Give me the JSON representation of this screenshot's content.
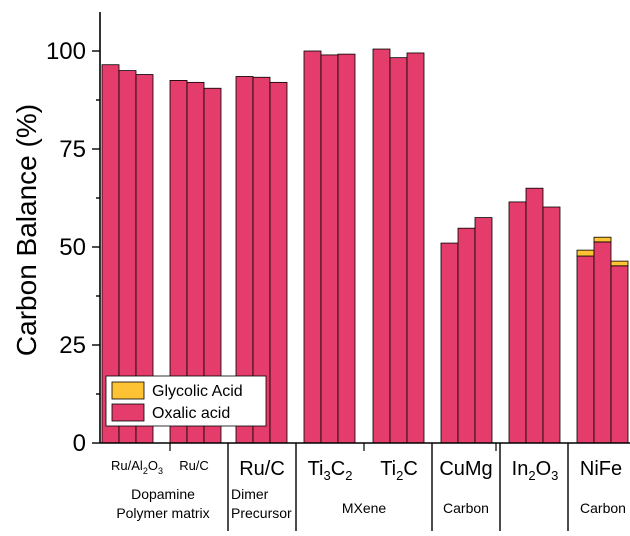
{
  "chart_data": {
    "type": "bar",
    "stacked": true,
    "ylabel": "Carbon Balance (%)",
    "ylim": [
      0,
      110
    ],
    "yticks": [
      "0",
      "25",
      "50",
      "75",
      "100"
    ],
    "colors": {
      "Oxalic acid": "#e43d6c",
      "Glycolic Acid": "#fdc334"
    },
    "legend": {
      "placement": "lower-left",
      "entries": [
        "Glycolic Acid",
        "Oxalic acid"
      ]
    },
    "category_labels": [
      {
        "base": "Ru/Al",
        "sub": "2",
        "rest": "O",
        "sub2": "3",
        "size": "small"
      },
      {
        "base": "Ru/C",
        "size": "small"
      },
      {
        "base": "Ru/C",
        "size": "large"
      },
      {
        "base": "Ti",
        "sub": "3",
        "rest": "C",
        "sub2": "2",
        "size": "large"
      },
      {
        "base": "Ti",
        "sub": "2",
        "rest": "C",
        "size": "large"
      },
      {
        "base": "CuMg",
        "size": "large"
      },
      {
        "base": "In",
        "sub": "2",
        "rest": "O",
        "sub2": "3",
        "size": "large"
      },
      {
        "base": "NiFe",
        "size": "large"
      }
    ],
    "group_labels": [
      {
        "lines": [
          "Dopamine",
          "Polymer matrix"
        ]
      },
      {
        "lines": [
          "Dimer",
          "Precursor"
        ]
      },
      {
        "lines": [
          "MXene"
        ]
      },
      {
        "lines": [
          "Carbon"
        ]
      },
      {
        "lines": [
          ""
        ]
      },
      {
        "lines": [
          "Carbon"
        ]
      }
    ],
    "bar_groups": [
      {
        "oxalic": [
          96.5,
          95.0,
          94.0
        ],
        "glycolic": [
          0,
          0,
          0
        ]
      },
      {
        "oxalic": [
          92.5,
          92.0,
          90.5
        ],
        "glycolic": [
          0,
          0,
          0
        ]
      },
      {
        "oxalic": [
          93.5,
          93.3,
          92.0
        ],
        "glycolic": [
          0,
          0,
          0
        ]
      },
      {
        "oxalic": [
          100.0,
          99.0,
          99.2
        ],
        "glycolic": [
          0,
          0,
          0
        ]
      },
      {
        "oxalic": [
          100.5,
          98.3,
          99.5
        ],
        "glycolic": [
          0,
          0,
          0
        ]
      },
      {
        "oxalic": [
          51.0,
          54.8,
          57.5
        ],
        "glycolic": [
          0,
          0,
          0
        ]
      },
      {
        "oxalic": [
          61.5,
          65.0,
          60.2
        ],
        "glycolic": [
          0,
          0,
          0
        ]
      },
      {
        "oxalic": [
          47.7,
          51.3,
          45.2
        ],
        "glycolic": [
          1.5,
          1.2,
          1.2
        ]
      }
    ]
  }
}
